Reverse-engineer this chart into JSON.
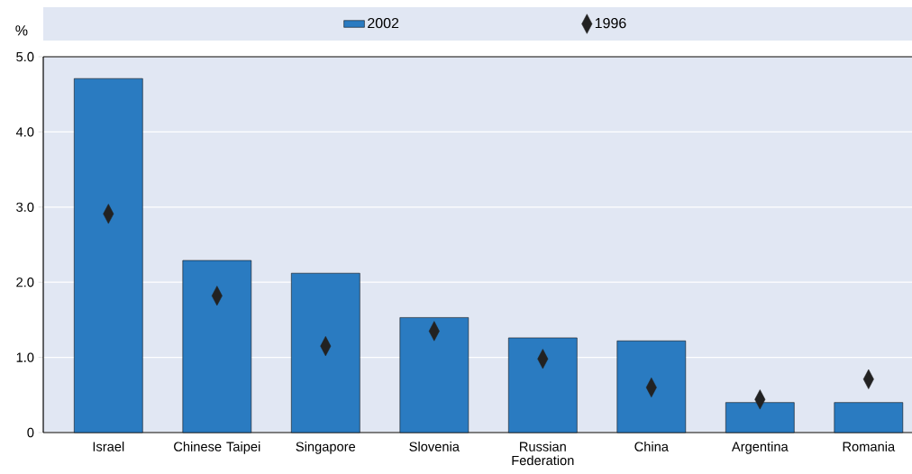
{
  "chart_data": {
    "type": "bar",
    "categories": [
      "Israel",
      "Chinese Taipei",
      "Singapore",
      "Slovenia",
      "Russian Federation",
      "China",
      "Argentina",
      "Romania"
    ],
    "series": [
      {
        "name": "2002",
        "color": "#2a7bc1",
        "values": [
          4.71,
          2.29,
          2.12,
          1.53,
          1.26,
          1.22,
          0.4,
          0.4
        ]
      },
      {
        "name": "1996",
        "type": "scatter",
        "color": "#222222",
        "marker": "diamond",
        "values": [
          2.91,
          1.82,
          1.15,
          1.35,
          0.98,
          0.6,
          0.44,
          0.71
        ]
      }
    ],
    "ylabel": "%",
    "ylim": [
      0,
      5
    ],
    "yticks": [
      0,
      {
        "value": 1,
        "label": "1.0"
      },
      {
        "value": 2,
        "label": "2.0"
      },
      {
        "value": 3,
        "label": "3.0"
      },
      {
        "value": 4,
        "label": "4.0"
      },
      {
        "value": 5,
        "label": "5.0"
      }
    ],
    "grid": "y",
    "legend": "top"
  }
}
